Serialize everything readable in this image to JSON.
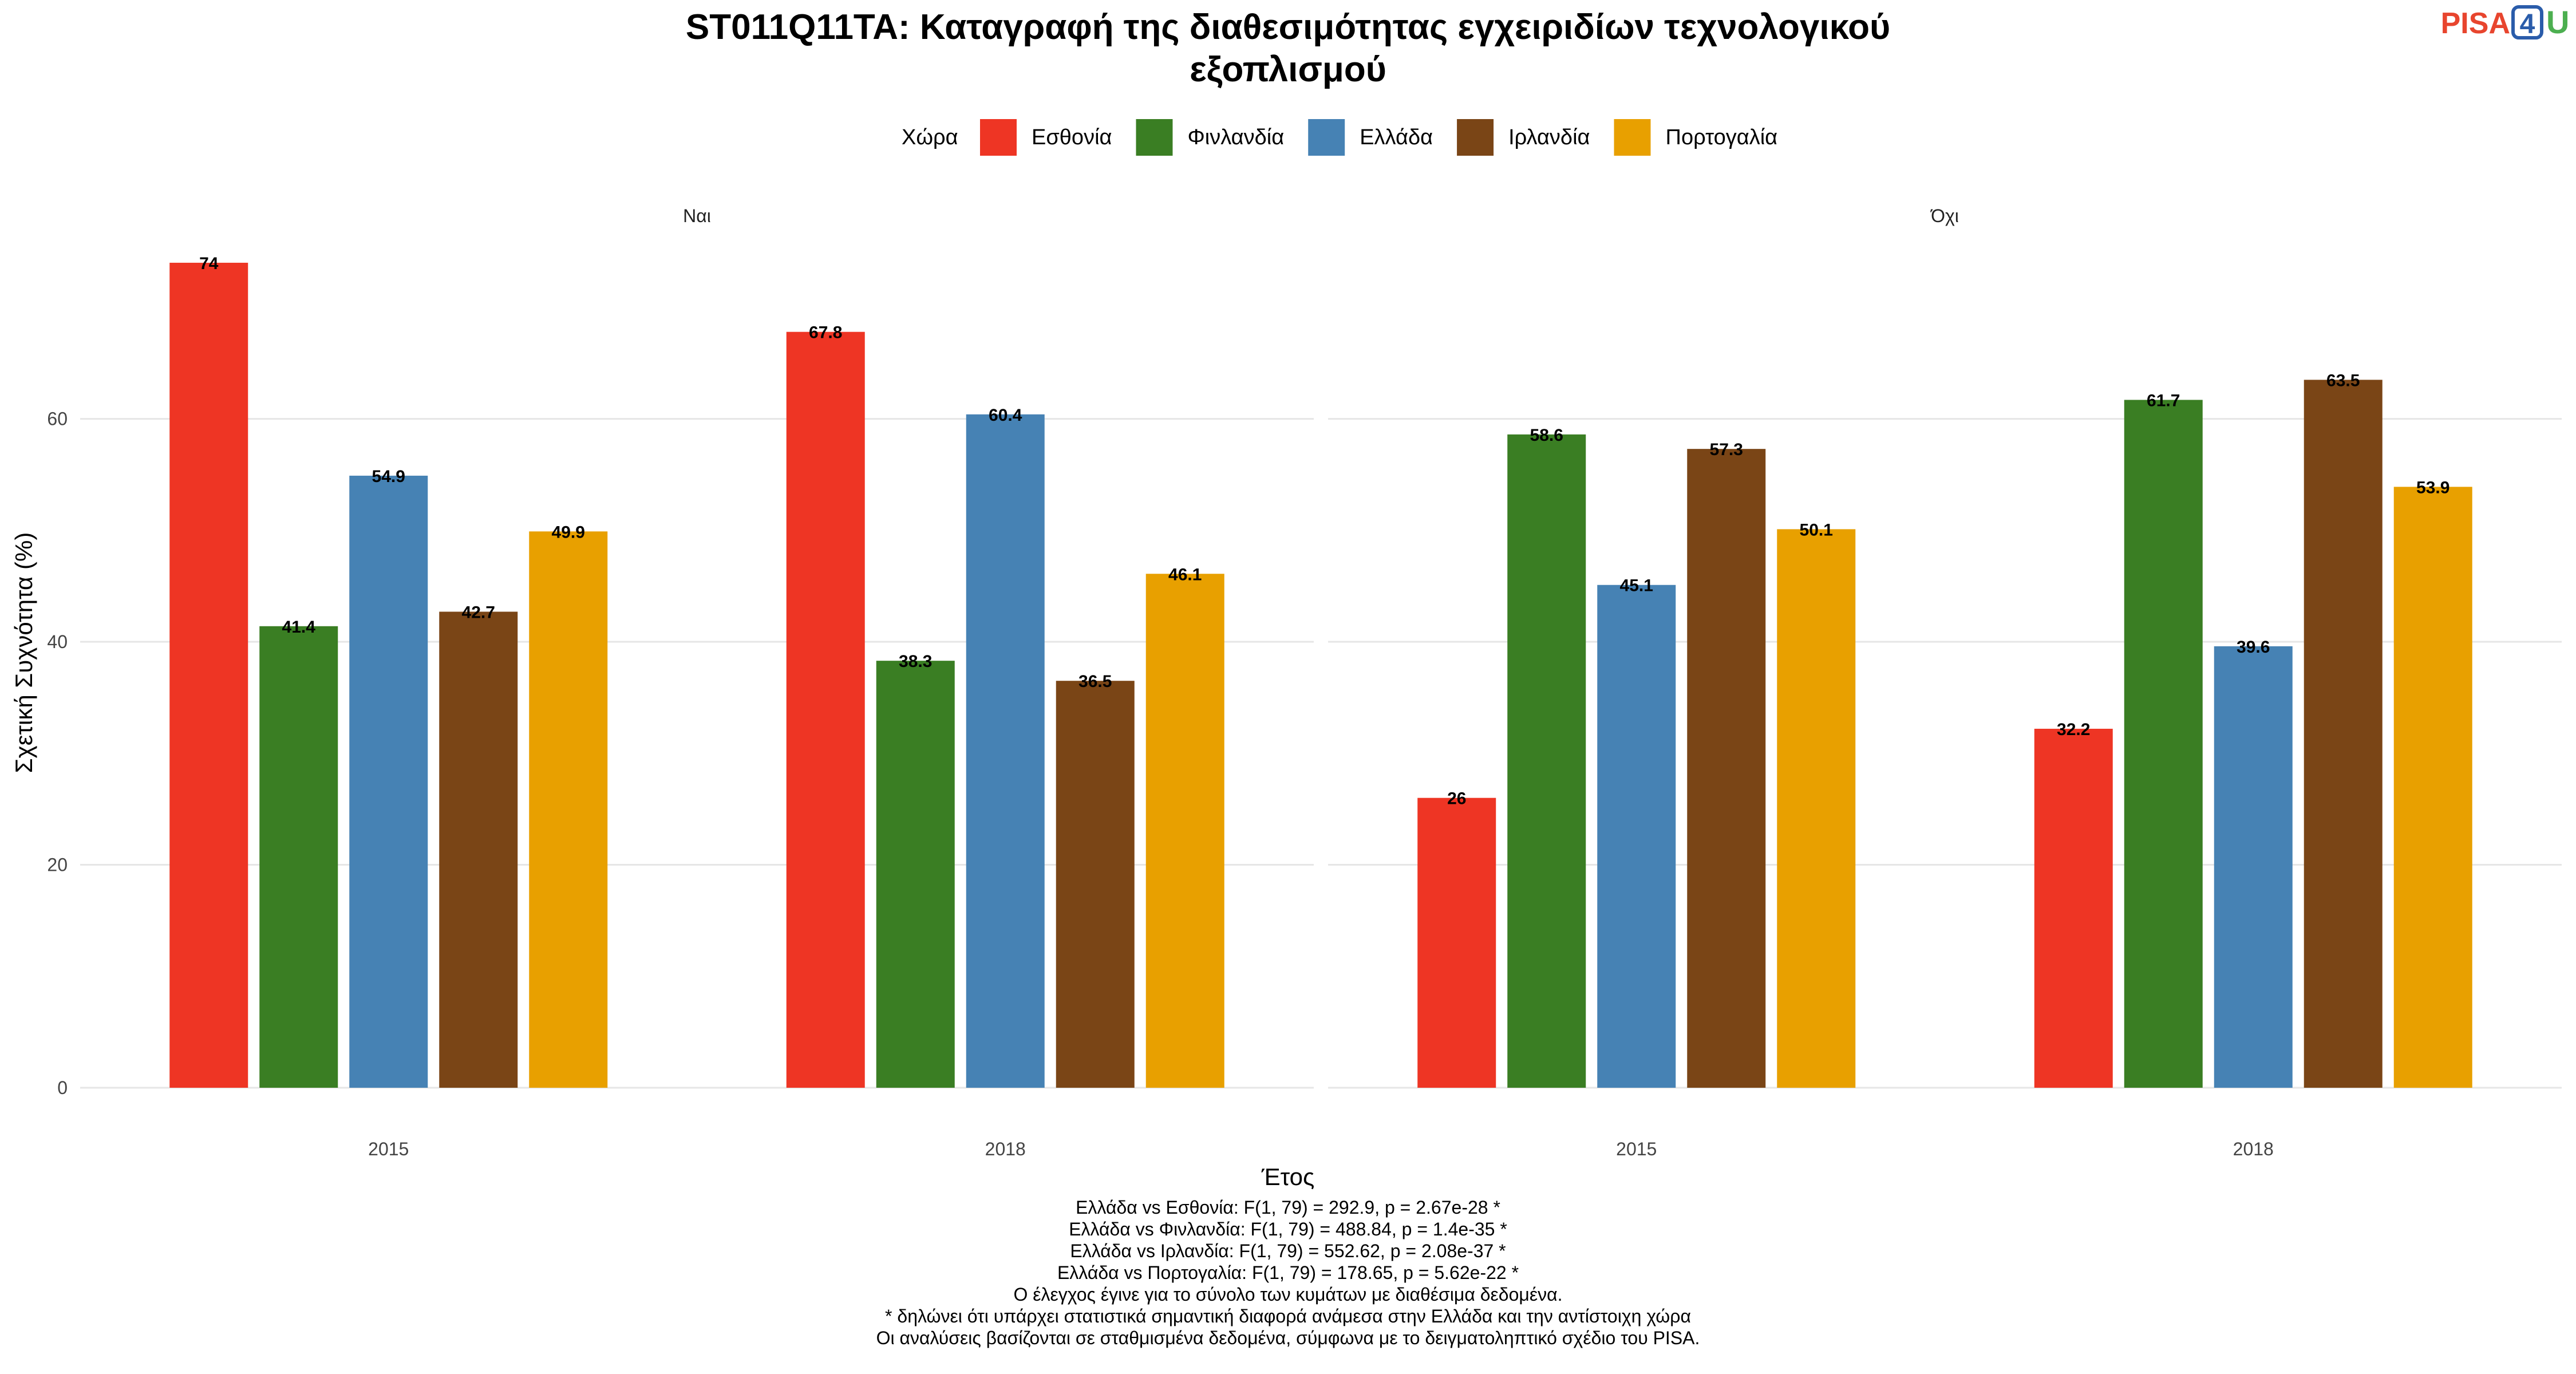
{
  "header": {
    "title_line1": "ST011Q11TA: Καταγραφή της διαθεσιμότητας εγχειριδίων τεχνολογικού",
    "title_line2": "εξοπλισμού",
    "logo_text": "PISA",
    "logo_digit": "4",
    "logo_letter": "U"
  },
  "legend": {
    "title": "Χώρα",
    "placement": "top"
  },
  "colors": {
    "Εσθονία": "#EE3524",
    "Φινλανδία": "#3A7E23",
    "Ελλάδα": "#4682B4",
    "Ιρλανδία": "#7A4516",
    "Πορτογαλία": "#E8A000",
    "logo_red": "#E8452E",
    "logo_blue": "#2A5CAA",
    "logo_green": "#4CAF50"
  },
  "chart_data": {
    "type": "bar",
    "layout": "faceted grouped bar",
    "xlabel": "Έτος",
    "ylabel": "Σχετική Συχνότητα (%)",
    "ylim": [
      0,
      76
    ],
    "yticks": [
      0,
      20,
      40,
      60
    ],
    "grid": true,
    "categories": [
      "2015",
      "2018"
    ],
    "series_names": [
      "Εσθονία",
      "Φινλανδία",
      "Ελλάδα",
      "Ιρλανδία",
      "Πορτογαλία"
    ],
    "facets": [
      {
        "label": "Ναι",
        "series": [
          {
            "name": "Εσθονία",
            "values": [
              74,
              67.8
            ]
          },
          {
            "name": "Φινλανδία",
            "values": [
              41.4,
              38.3
            ]
          },
          {
            "name": "Ελλάδα",
            "values": [
              54.9,
              60.4
            ]
          },
          {
            "name": "Ιρλανδία",
            "values": [
              42.7,
              36.5
            ]
          },
          {
            "name": "Πορτογαλία",
            "values": [
              49.9,
              46.1
            ]
          }
        ]
      },
      {
        "label": "Όχι",
        "series": [
          {
            "name": "Εσθονία",
            "values": [
              26,
              32.2
            ]
          },
          {
            "name": "Φινλανδία",
            "values": [
              58.6,
              61.7
            ]
          },
          {
            "name": "Ελλάδα",
            "values": [
              45.1,
              39.6
            ]
          },
          {
            "name": "Ιρλανδία",
            "values": [
              57.3,
              63.5
            ]
          },
          {
            "name": "Πορτογαλία",
            "values": [
              50.1,
              53.9
            ]
          }
        ]
      }
    ]
  },
  "footnotes": [
    "Ελλάδα vs Εσθονία: F(1, 79) = 292.9, p = 2.67e-28 *",
    "Ελλάδα vs Φινλανδία: F(1, 79) = 488.84, p = 1.4e-35 *",
    "Ελλάδα vs Ιρλανδία: F(1, 79) = 552.62, p = 2.08e-37 *",
    "Ελλάδα vs Πορτογαλία: F(1, 79) = 178.65, p = 5.62e-22 *",
    "Ο έλεγχος έγινε για το σύνολο των κυμάτων με διαθέσιμα δεδομένα.",
    "* δηλώνει ότι υπάρχει στατιστικά σημαντική διαφορά ανάμεσα στην Ελλάδα και την αντίστοιχη χώρα",
    "Οι αναλύσεις βασίζονται σε σταθμισμένα δεδομένα, σύμφωνα με το δειγματοληπτικό σχέδιο του PISA."
  ]
}
